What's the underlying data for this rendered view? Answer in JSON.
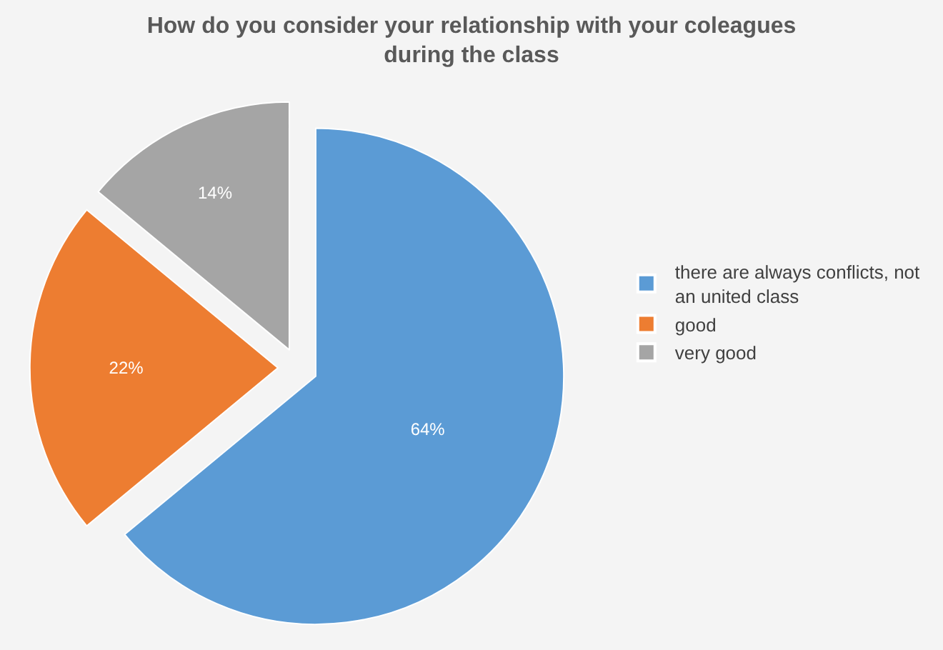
{
  "chart_data": {
    "type": "pie",
    "title": "How do you consider your relationship with your coleagues during the class",
    "categories": [
      "there are always conflicts, not an united class",
      "good",
      "very good"
    ],
    "values": [
      64,
      22,
      14
    ],
    "value_labels": [
      "64%",
      "22%",
      "14%"
    ],
    "colors": [
      "#5b9bd5",
      "#ed7d31",
      "#a5a5a5"
    ],
    "legend": "right"
  }
}
